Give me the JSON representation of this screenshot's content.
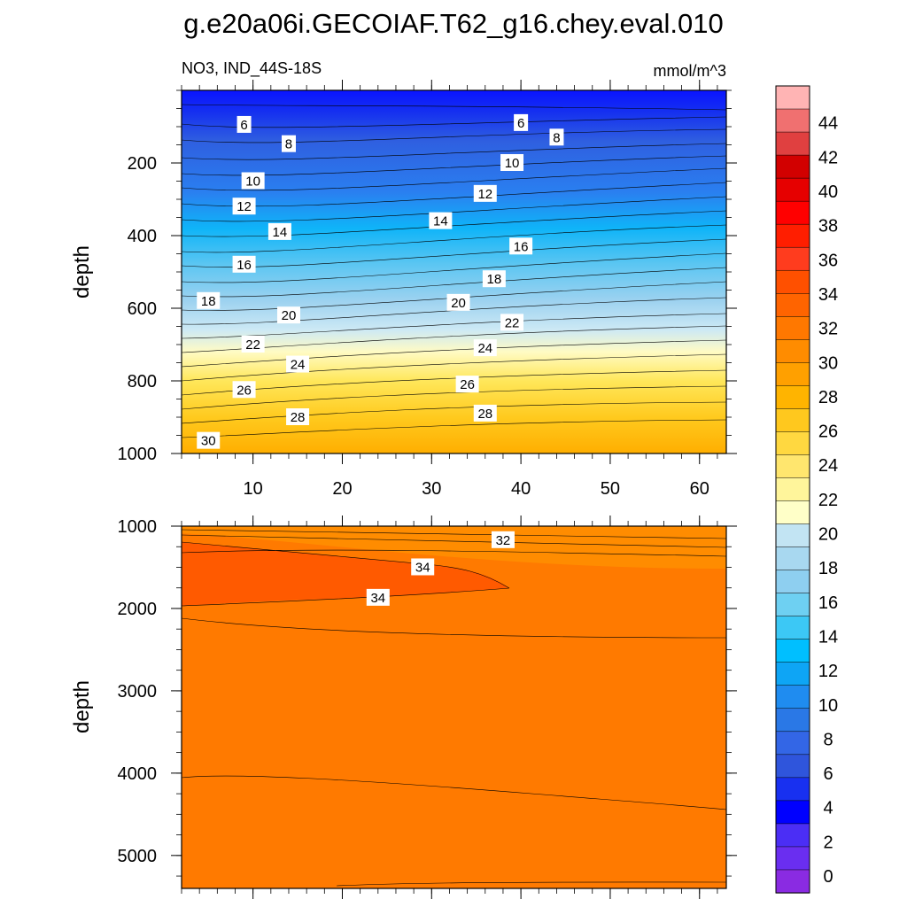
{
  "chart_data": {
    "type": "contour",
    "title": "g.e20a06i.GECOIAF.T62_g16.chey.eval.010",
    "variable_label": "NO3, IND_44S-18S",
    "units": "mmol/m^3",
    "colorbar": {
      "levels": [
        0,
        2,
        4,
        6,
        8,
        10,
        12,
        14,
        16,
        18,
        20,
        22,
        24,
        26,
        28,
        30,
        32,
        34,
        36,
        38,
        40,
        42,
        44
      ],
      "colors": [
        "#8a2be2",
        "#6a2ef0",
        "#4b2ef5",
        "#0000ff",
        "#1830f0",
        "#2f55dc",
        "#3366e6",
        "#2a78e6",
        "#1f8cf0",
        "#0ea5f5",
        "#00bfff",
        "#3cc8f5",
        "#6ed0f2",
        "#8ecff0",
        "#a8d8f0",
        "#c2e4f3",
        "#ffffc8",
        "#fff59b",
        "#ffe66e",
        "#ffd840",
        "#ffc81e",
        "#ffb400",
        "#ffa000",
        "#ff8c00",
        "#ff7800",
        "#ff6400",
        "#ff5000",
        "#ff3c1e",
        "#ff1e00",
        "#ff0000",
        "#e60000",
        "#d20000",
        "#e04040",
        "#f07070",
        "#ffb4b4"
      ],
      "tick_labels": [
        "0",
        "2",
        "4",
        "6",
        "8",
        "10",
        "12",
        "14",
        "16",
        "18",
        "20",
        "22",
        "24",
        "26",
        "28",
        "30",
        "32",
        "34",
        "36",
        "38",
        "40",
        "42",
        "44"
      ]
    },
    "panels": [
      {
        "name": "upper",
        "xlim": [
          2,
          63
        ],
        "ylim": [
          0,
          1000
        ],
        "ylabel": "depth",
        "yticks": [
          200,
          400,
          600,
          800,
          1000
        ],
        "xticks": [
          10,
          20,
          30,
          40,
          50,
          60
        ],
        "contour_labels": [
          {
            "text": "6",
            "x": 9,
            "y": 95
          },
          {
            "text": "6",
            "x": 40,
            "y": 90
          },
          {
            "text": "8",
            "x": 14,
            "y": 148
          },
          {
            "text": "8",
            "x": 44,
            "y": 130
          },
          {
            "text": "10",
            "x": 10,
            "y": 250
          },
          {
            "text": "10",
            "x": 39,
            "y": 200
          },
          {
            "text": "12",
            "x": 9,
            "y": 320
          },
          {
            "text": "12",
            "x": 36,
            "y": 285
          },
          {
            "text": "14",
            "x": 13,
            "y": 390
          },
          {
            "text": "14",
            "x": 31,
            "y": 360
          },
          {
            "text": "16",
            "x": 9,
            "y": 480
          },
          {
            "text": "16",
            "x": 40,
            "y": 430
          },
          {
            "text": "18",
            "x": 5,
            "y": 580
          },
          {
            "text": "18",
            "x": 37,
            "y": 520
          },
          {
            "text": "20",
            "x": 14,
            "y": 620
          },
          {
            "text": "20",
            "x": 33,
            "y": 585
          },
          {
            "text": "22",
            "x": 10,
            "y": 700
          },
          {
            "text": "22",
            "x": 39,
            "y": 640
          },
          {
            "text": "24",
            "x": 15,
            "y": 755
          },
          {
            "text": "24",
            "x": 36,
            "y": 710
          },
          {
            "text": "26",
            "x": 9,
            "y": 825
          },
          {
            "text": "26",
            "x": 34,
            "y": 810
          },
          {
            "text": "28",
            "x": 15,
            "y": 900
          },
          {
            "text": "28",
            "x": 36,
            "y": 890
          },
          {
            "text": "30",
            "x": 5,
            "y": 965
          }
        ]
      },
      {
        "name": "lower",
        "xlim": [
          2,
          63
        ],
        "ylim": [
          1000,
          5400
        ],
        "ylabel": "depth",
        "yticks": [
          1000,
          2000,
          3000,
          4000,
          5000
        ],
        "xticks": [
          10,
          20,
          30,
          40,
          50,
          60
        ],
        "contour_labels": [
          {
            "text": "32",
            "x": 38,
            "y": 1170
          },
          {
            "text": "34",
            "x": 29,
            "y": 1500
          },
          {
            "text": "34",
            "x": 24,
            "y": 1870
          }
        ]
      }
    ]
  }
}
